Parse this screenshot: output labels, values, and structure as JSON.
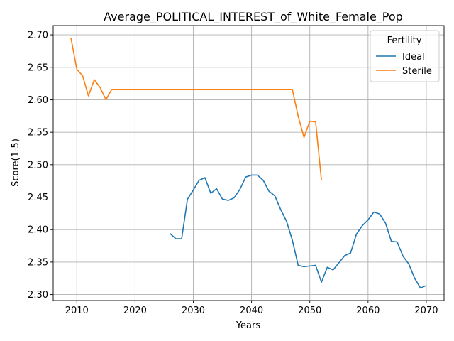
{
  "chart_data": {
    "type": "line",
    "title": "Average_POLITICAL_INTEREST_of_White_Female_Pop",
    "xlabel": "Years",
    "ylabel": "Score(1-5)",
    "xlim": [
      2005.95,
      2073.05
    ],
    "ylim": [
      2.2908,
      2.7143
    ],
    "xticks": [
      2010,
      2020,
      2030,
      2040,
      2050,
      2060,
      2070
    ],
    "yticks": [
      2.3,
      2.35,
      2.4,
      2.45,
      2.5,
      2.55,
      2.6,
      2.65,
      2.7
    ],
    "grid": true,
    "legend": {
      "title": "Fertility",
      "placement": "top-right"
    },
    "series": [
      {
        "name": "Ideal",
        "color": "#1f77b4",
        "x": [
          2026,
          2027,
          2028,
          2029,
          2030,
          2031,
          2032,
          2033,
          2034,
          2035,
          2036,
          2037,
          2038,
          2039,
          2040,
          2041,
          2042,
          2043,
          2044,
          2045,
          2046,
          2047,
          2048,
          2049,
          2050,
          2051,
          2052,
          2053,
          2054,
          2055,
          2056,
          2057,
          2058,
          2059,
          2060,
          2061,
          2062,
          2063,
          2064,
          2065,
          2066,
          2067,
          2068,
          2069,
          2070
        ],
        "y": [
          2.394,
          2.386,
          2.386,
          2.447,
          2.461,
          2.476,
          2.48,
          2.456,
          2.463,
          2.447,
          2.445,
          2.449,
          2.462,
          2.481,
          2.484,
          2.484,
          2.476,
          2.459,
          2.452,
          2.431,
          2.413,
          2.384,
          2.345,
          2.343,
          2.344,
          2.345,
          2.319,
          2.342,
          2.338,
          2.349,
          2.36,
          2.364,
          2.393,
          2.406,
          2.415,
          2.427,
          2.424,
          2.41,
          2.382,
          2.381,
          2.359,
          2.347,
          2.325,
          2.31,
          2.314
        ]
      },
      {
        "name": "Sterile",
        "color": "#ff7f0e",
        "x": [
          2009,
          2010,
          2011,
          2012,
          2013,
          2014,
          2015,
          2016,
          2017,
          2018,
          2019,
          2020,
          2021,
          2022,
          2023,
          2024,
          2025,
          2026,
          2027,
          2028,
          2029,
          2030,
          2031,
          2032,
          2033,
          2034,
          2035,
          2036,
          2037,
          2038,
          2039,
          2040,
          2041,
          2042,
          2043,
          2044,
          2045,
          2046,
          2047,
          2048,
          2049,
          2050,
          2051,
          2052
        ],
        "y": [
          2.695,
          2.647,
          2.637,
          2.606,
          2.631,
          2.619,
          2.6,
          2.616,
          2.616,
          2.616,
          2.616,
          2.616,
          2.616,
          2.616,
          2.616,
          2.616,
          2.616,
          2.616,
          2.616,
          2.616,
          2.616,
          2.616,
          2.616,
          2.616,
          2.616,
          2.616,
          2.616,
          2.616,
          2.616,
          2.616,
          2.616,
          2.616,
          2.616,
          2.616,
          2.616,
          2.616,
          2.616,
          2.616,
          2.616,
          2.575,
          2.542,
          2.567,
          2.566,
          2.476
        ]
      }
    ]
  }
}
